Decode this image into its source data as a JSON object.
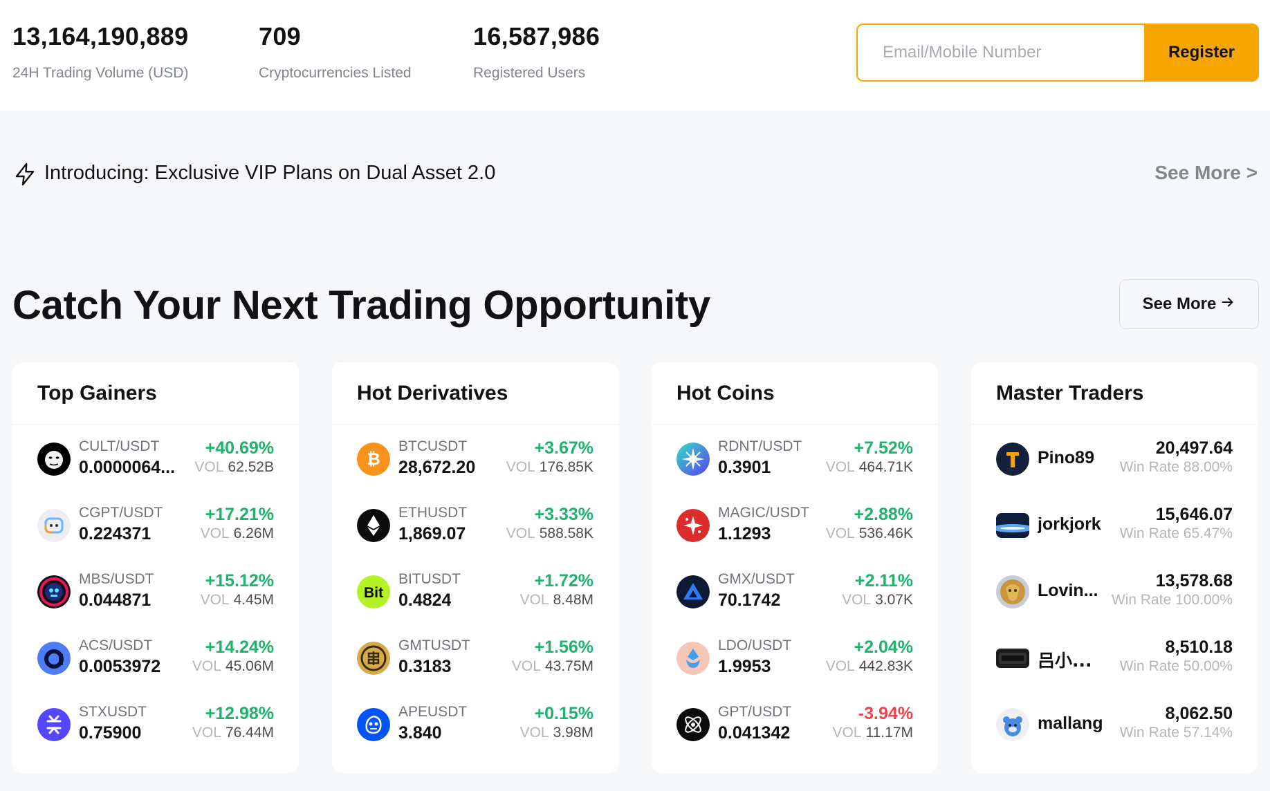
{
  "stats": [
    {
      "value": "13,164,190,889",
      "label": "24H Trading Volume (USD)"
    },
    {
      "value": "709",
      "label": "Cryptocurrencies Listed"
    },
    {
      "value": "16,587,986",
      "label": "Registered Users"
    }
  ],
  "register": {
    "placeholder": "Email/Mobile Number",
    "button_label": "Register"
  },
  "announcement": {
    "text": "Introducing: Exclusive VIP Plans on Dual Asset 2.0",
    "see_more": "See More >"
  },
  "section": {
    "title": "Catch Your Next Trading Opportunity",
    "see_more": "See More"
  },
  "vol_key": "VOL",
  "colors": {
    "accent": "#f7a600",
    "up": "#20b26c",
    "down": "#ef454a",
    "muted": "#81858c"
  },
  "cards": {
    "top_gainers": {
      "title": "Top Gainers",
      "rows": [
        {
          "pair": "CULT/USDT",
          "price": "0.0000064...",
          "change": "+40.69%",
          "vol": "62.52B",
          "icon": "cult-icon"
        },
        {
          "pair": "CGPT/USDT",
          "price": "0.224371",
          "change": "+17.21%",
          "vol": "6.26M",
          "icon": "cgpt-icon"
        },
        {
          "pair": "MBS/USDT",
          "price": "0.044871",
          "change": "+15.12%",
          "vol": "4.45M",
          "icon": "mbs-icon"
        },
        {
          "pair": "ACS/USDT",
          "price": "0.0053972",
          "change": "+14.24%",
          "vol": "45.06M",
          "icon": "acs-icon"
        },
        {
          "pair": "STXUSDT",
          "price": "0.75900",
          "change": "+12.98%",
          "vol": "76.44M",
          "icon": "stx-icon"
        }
      ]
    },
    "hot_derivatives": {
      "title": "Hot Derivatives",
      "rows": [
        {
          "pair": "BTCUSDT",
          "price": "28,672.20",
          "change": "+3.67%",
          "vol": "176.85K",
          "icon": "bitcoin-icon"
        },
        {
          "pair": "ETHUSDT",
          "price": "1,869.07",
          "change": "+3.33%",
          "vol": "588.58K",
          "icon": "ethereum-icon"
        },
        {
          "pair": "BITUSDT",
          "price": "0.4824",
          "change": "+1.72%",
          "vol": "8.48M",
          "icon": "bit-icon",
          "icon_text": "Bit"
        },
        {
          "pair": "GMTUSDT",
          "price": "0.3183",
          "change": "+1.56%",
          "vol": "43.75M",
          "icon": "gmt-icon"
        },
        {
          "pair": "APEUSDT",
          "price": "3.840",
          "change": "+0.15%",
          "vol": "3.98M",
          "icon": "ape-icon"
        }
      ]
    },
    "hot_coins": {
      "title": "Hot Coins",
      "rows": [
        {
          "pair": "RDNT/USDT",
          "price": "0.3901",
          "change": "+7.52%",
          "vol": "464.71K",
          "icon": "rdnt-icon"
        },
        {
          "pair": "MAGIC/USDT",
          "price": "1.1293",
          "change": "+2.88%",
          "vol": "536.46K",
          "icon": "magic-icon"
        },
        {
          "pair": "GMX/USDT",
          "price": "70.1742",
          "change": "+2.11%",
          "vol": "3.07K",
          "icon": "gmx-icon"
        },
        {
          "pair": "LDO/USDT",
          "price": "1.9953",
          "change": "+2.04%",
          "vol": "442.83K",
          "icon": "ldo-icon"
        },
        {
          "pair": "GPT/USDT",
          "price": "0.041342",
          "change": "-3.94%",
          "vol": "11.17M",
          "icon": "gpt-icon"
        }
      ]
    },
    "master_traders": {
      "title": "Master Traders",
      "win_rate_key": "Win Rate",
      "rows": [
        {
          "name": "Pino89",
          "value": "20,497.64",
          "win_rate": "88.00%",
          "icon": "avatar-pino89"
        },
        {
          "name": "jorkjork",
          "value": "15,646.07",
          "win_rate": "65.47%",
          "icon": "avatar-jorkjork"
        },
        {
          "name": "Lovin...",
          "value": "13,578.68",
          "win_rate": "100.00%",
          "icon": "avatar-lovin"
        },
        {
          "name": "吕小...",
          "value": "8,510.18",
          "win_rate": "50.00%",
          "icon": "avatar-lv"
        },
        {
          "name": "mallang",
          "value": "8,062.50",
          "win_rate": "57.14%",
          "icon": "avatar-mallang"
        }
      ]
    }
  }
}
